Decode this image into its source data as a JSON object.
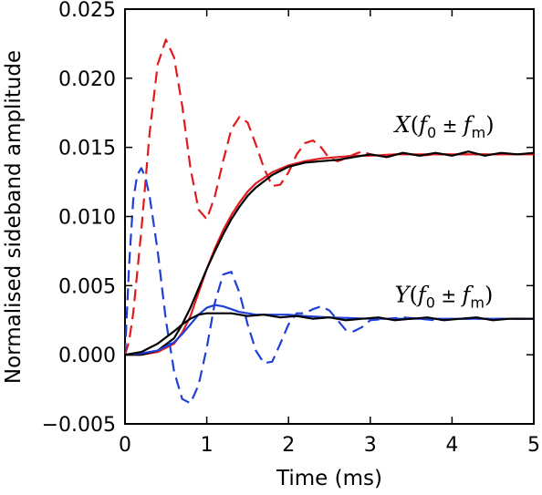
{
  "chart_data": {
    "type": "line",
    "xlabel": "Time (ms)",
    "ylabel": "Normalised sideband amplitude",
    "xlim": [
      0,
      5
    ],
    "ylim": [
      -0.005,
      0.025
    ],
    "x_ticks": [
      0,
      1,
      2,
      3,
      4,
      5
    ],
    "x_tick_labels": [
      "0",
      "1",
      "2",
      "3",
      "4",
      "5"
    ],
    "y_ticks": [
      -0.005,
      0.0,
      0.005,
      0.01,
      0.015,
      0.02,
      0.025
    ],
    "y_tick_labels": [
      "−0.005",
      "0.000",
      "0.005",
      "0.010",
      "0.015",
      "0.020",
      "0.025"
    ],
    "grid": false,
    "annotations": [
      {
        "main": "X",
        "var1": "f",
        "sub1": "0",
        "op": " ± ",
        "var2": "f",
        "sub2": "m",
        "x": 3.3,
        "y": 0.0161
      },
      {
        "main": "Y",
        "var1": "f",
        "sub1": "0",
        "op": " ± ",
        "var2": "f",
        "sub2": "m",
        "x": 3.3,
        "y": 0.0038
      }
    ],
    "series": [
      {
        "color": "#e31a1c",
        "style": "dashed",
        "x": [
          0,
          0.05,
          0.1,
          0.2,
          0.3,
          0.4,
          0.5,
          0.6,
          0.7,
          0.8,
          0.9,
          1.0,
          1.1,
          1.2,
          1.3,
          1.4,
          1.5,
          1.6,
          1.7,
          1.8,
          1.9,
          2.0,
          2.1,
          2.2,
          2.3,
          2.4,
          2.5,
          2.6,
          2.7,
          2.8,
          2.9,
          3.0,
          3.2,
          3.4,
          3.6,
          3.8,
          4.0,
          4.5,
          5.0
        ],
        "y": [
          0.0,
          0.001,
          0.003,
          0.009,
          0.016,
          0.021,
          0.0228,
          0.0215,
          0.018,
          0.0135,
          0.0105,
          0.0098,
          0.0115,
          0.014,
          0.0163,
          0.0172,
          0.0168,
          0.0152,
          0.0135,
          0.0122,
          0.0123,
          0.0132,
          0.0145,
          0.0153,
          0.0155,
          0.015,
          0.0142,
          0.014,
          0.0142,
          0.0145,
          0.0147,
          0.0145,
          0.0143,
          0.0146,
          0.0144,
          0.0145,
          0.0145,
          0.0145,
          0.0145
        ]
      },
      {
        "color": "#e31a1c",
        "style": "solid",
        "x": [
          0,
          0.2,
          0.4,
          0.6,
          0.7,
          0.8,
          0.9,
          1.0,
          1.1,
          1.2,
          1.3,
          1.4,
          1.5,
          1.6,
          1.8,
          2.0,
          2.2,
          2.4,
          2.6,
          2.8,
          3.0,
          3.3,
          3.6,
          4.0,
          4.5,
          5.0
        ],
        "y": [
          0.0,
          0.0,
          0.0002,
          0.0008,
          0.0016,
          0.0028,
          0.0045,
          0.0062,
          0.0077,
          0.009,
          0.0101,
          0.011,
          0.0118,
          0.0124,
          0.0132,
          0.0137,
          0.014,
          0.0142,
          0.0143,
          0.0144,
          0.0144,
          0.0145,
          0.0145,
          0.0145,
          0.0145,
          0.0145
        ]
      },
      {
        "color": "#000000",
        "style": "solid",
        "x": [
          0,
          0.2,
          0.4,
          0.6,
          0.7,
          0.8,
          0.9,
          1.0,
          1.1,
          1.2,
          1.3,
          1.4,
          1.5,
          1.6,
          1.8,
          2.0,
          2.2,
          2.4,
          2.6,
          2.8,
          3.0,
          3.2,
          3.4,
          3.6,
          3.8,
          4.0,
          4.2,
          4.4,
          4.6,
          4.8,
          5.0
        ],
        "y": [
          0.0,
          0.0,
          0.0003,
          0.0012,
          0.0022,
          0.0034,
          0.0048,
          0.0062,
          0.0075,
          0.0087,
          0.0098,
          0.0107,
          0.0115,
          0.0121,
          0.013,
          0.0136,
          0.0139,
          0.014,
          0.0141,
          0.0143,
          0.0145,
          0.0143,
          0.0146,
          0.0144,
          0.0146,
          0.0144,
          0.0147,
          0.0144,
          0.0146,
          0.0145,
          0.0146
        ]
      },
      {
        "color": "#1f3fd6",
        "style": "dashed",
        "x": [
          0,
          0.05,
          0.1,
          0.15,
          0.2,
          0.25,
          0.3,
          0.4,
          0.5,
          0.6,
          0.7,
          0.8,
          0.9,
          1.0,
          1.1,
          1.2,
          1.3,
          1.4,
          1.5,
          1.6,
          1.7,
          1.8,
          1.9,
          2.0,
          2.1,
          2.2,
          2.3,
          2.4,
          2.5,
          2.6,
          2.7,
          2.8,
          2.9,
          3.0,
          3.2,
          3.4,
          3.6,
          3.8,
          4.0,
          4.5,
          5.0
        ],
        "y": [
          0.0,
          0.0065,
          0.0112,
          0.013,
          0.0135,
          0.0128,
          0.0115,
          0.0075,
          0.0025,
          -0.0012,
          -0.0032,
          -0.0035,
          -0.0022,
          0.0005,
          0.0038,
          0.0058,
          0.006,
          0.0045,
          0.0022,
          0.0003,
          -0.0006,
          -0.0005,
          0.0008,
          0.0022,
          0.003,
          0.003,
          0.0033,
          0.0035,
          0.0032,
          0.0025,
          0.0018,
          0.0017,
          0.002,
          0.0025,
          0.0026,
          0.0027,
          0.0026,
          0.0025,
          0.0026,
          0.0026,
          0.0026
        ]
      },
      {
        "color": "#1f3fd6",
        "style": "solid",
        "x": [
          0,
          0.2,
          0.4,
          0.6,
          0.7,
          0.8,
          0.9,
          1.0,
          1.1,
          1.2,
          1.3,
          1.4,
          1.6,
          1.8,
          2.0,
          2.2,
          2.5,
          3.0,
          3.5,
          4.0,
          5.0
        ],
        "y": [
          0.0,
          0.0001,
          0.0003,
          0.0009,
          0.0015,
          0.0022,
          0.0029,
          0.0034,
          0.0036,
          0.0035,
          0.0033,
          0.0031,
          0.0029,
          0.0029,
          0.0029,
          0.0028,
          0.0027,
          0.0026,
          0.0026,
          0.0026,
          0.0026
        ]
      },
      {
        "color": "#000000",
        "style": "solid",
        "x": [
          0,
          0.2,
          0.4,
          0.6,
          0.7,
          0.8,
          0.9,
          1.0,
          1.1,
          1.3,
          1.5,
          1.7,
          1.9,
          2.1,
          2.3,
          2.5,
          2.7,
          2.9,
          3.1,
          3.3,
          3.5,
          3.7,
          3.9,
          4.1,
          4.3,
          4.5,
          4.7,
          4.9,
          5.0
        ],
        "y": [
          0.0,
          0.0002,
          0.0008,
          0.0017,
          0.0022,
          0.0026,
          0.0029,
          0.003,
          0.003,
          0.003,
          0.0028,
          0.0029,
          0.0027,
          0.0028,
          0.0026,
          0.0027,
          0.0025,
          0.0026,
          0.0027,
          0.0025,
          0.0026,
          0.0027,
          0.0025,
          0.0026,
          0.0027,
          0.0025,
          0.0026,
          0.0026,
          0.0026
        ]
      }
    ]
  }
}
